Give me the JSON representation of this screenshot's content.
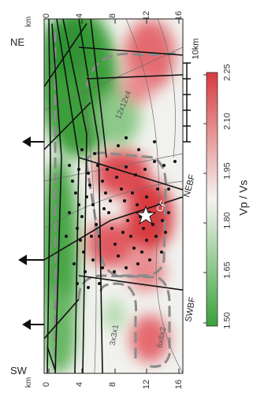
{
  "corners": {
    "top": "NE",
    "bottom": "SW"
  },
  "axis_unit": "km",
  "axis_ticks": [
    "0",
    "4",
    "8",
    "12",
    "16"
  ],
  "scale_bar": "10km",
  "colorbar": {
    "title": "Vp / Vs",
    "ticks": [
      "2.25",
      "2.10",
      "1.95",
      "1.80",
      "1.65",
      "1.50"
    ],
    "colors": [
      "#d83a3f",
      "#f4f4f0",
      "#39a23a"
    ]
  },
  "faults": {
    "nebf": "NEBF",
    "swbf": "SWBF",
    "cf": "CF"
  },
  "box_labels": {
    "top": "12x12x4",
    "left": "3x3x1",
    "right": "6x6x2"
  }
}
